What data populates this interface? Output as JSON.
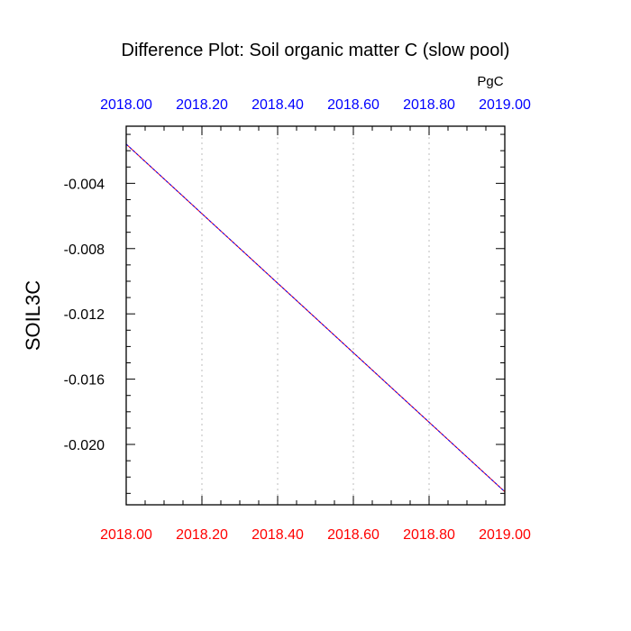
{
  "chart_data": {
    "type": "line",
    "title": "Difference Plot: Soil organic matter C (slow pool)",
    "ylabel": "SOIL3C",
    "units_label": "PgC",
    "xlim": [
      2018.0,
      2019.0
    ],
    "ylim": [
      -0.0237,
      -0.0005
    ],
    "x_ticks": [
      "2018.00",
      "2018.20",
      "2018.40",
      "2018.60",
      "2018.80",
      "2019.00"
    ],
    "x_tick_values": [
      2018.0,
      2018.2,
      2018.4,
      2018.6,
      2018.8,
      2019.0
    ],
    "y_ticks": [
      "-0.004",
      "-0.008",
      "-0.012",
      "-0.016",
      "-0.020"
    ],
    "y_tick_values": [
      -0.004,
      -0.008,
      -0.012,
      -0.016,
      -0.02
    ],
    "grid": "vertical-dotted",
    "colors": {
      "top_axis_labels": "#0000ff",
      "bottom_axis_labels": "#ff0000",
      "line_primary": "#0000ff",
      "line_secondary": "#ff0000"
    },
    "series": [
      {
        "x": [
          2018.0,
          2019.0
        ],
        "y": [
          -0.0016,
          -0.0229
        ]
      }
    ]
  }
}
